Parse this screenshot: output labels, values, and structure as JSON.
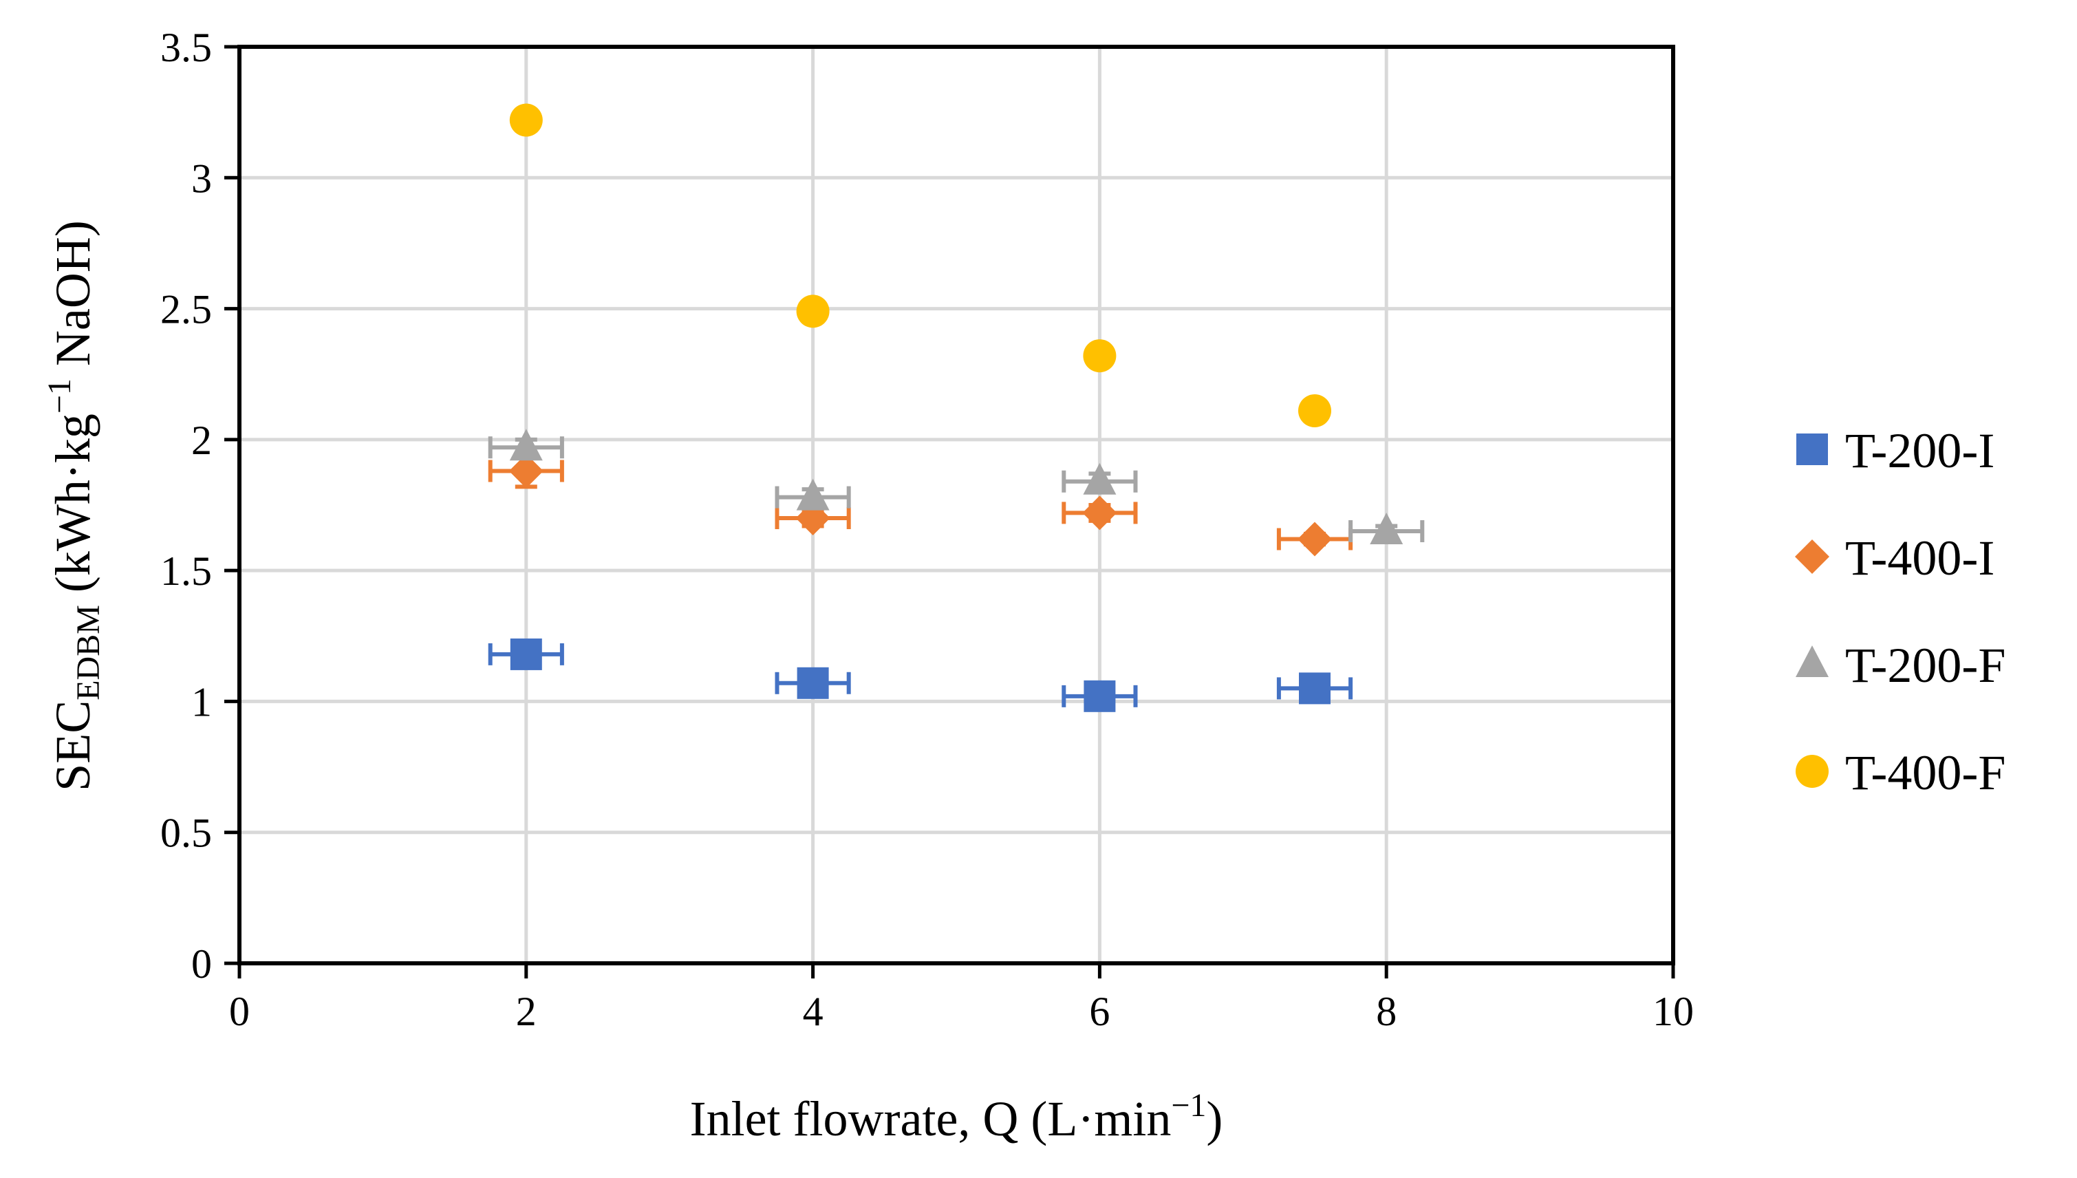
{
  "chart_data": {
    "type": "scatter",
    "xlabel": {
      "main": "Inlet flowrate, Q (L·min",
      "sup": "−1",
      "end": ")"
    },
    "ylabel": {
      "main": "SEC",
      "sub": "EDBM",
      "mid": " (kWh·kg",
      "sup": "−1",
      "end": " NaOH)"
    },
    "xlim": [
      0,
      10
    ],
    "ylim": [
      0,
      3.5
    ],
    "xticks": [
      0,
      2,
      4,
      6,
      8,
      10
    ],
    "yticks": [
      0,
      0.5,
      1,
      1.5,
      2,
      2.5,
      3,
      3.5
    ],
    "xtick_labels": [
      "0",
      "2",
      "4",
      "6",
      "8",
      "10"
    ],
    "ytick_labels": [
      "0",
      "0.5",
      "1",
      "1.5",
      "2",
      "2.5",
      "3",
      "3.5"
    ],
    "grid": true,
    "legend_position": "right",
    "series": [
      {
        "name": "T-200-I",
        "marker": "square",
        "color": "#4472C4",
        "x": [
          2,
          4,
          6,
          7.5
        ],
        "y": [
          1.18,
          1.07,
          1.02,
          1.05
        ],
        "x_err": [
          0.25,
          0.25,
          0.25,
          0.25
        ],
        "y_err": [
          0.02,
          0.02,
          0.02,
          0.02
        ]
      },
      {
        "name": "T-400-I",
        "marker": "diamond",
        "color": "#ED7D31",
        "x": [
          2,
          4,
          6,
          7.5
        ],
        "y": [
          1.88,
          1.7,
          1.72,
          1.62
        ],
        "x_err": [
          0.25,
          0.25,
          0.25,
          0.25
        ],
        "y_err": [
          0.06,
          0.03,
          0.03,
          0.02
        ]
      },
      {
        "name": "T-200-F",
        "marker": "triangle",
        "color": "#A5A5A5",
        "x": [
          2,
          4,
          6,
          8
        ],
        "y": [
          1.97,
          1.78,
          1.84,
          1.65
        ],
        "x_err": [
          0.25,
          0.25,
          0.25,
          0.25
        ],
        "y_err": [
          0.03,
          0.03,
          0.03,
          0.02
        ]
      },
      {
        "name": "T-400-F",
        "marker": "circle",
        "color": "#FFC000",
        "x": [
          2,
          4,
          6,
          7.5
        ],
        "y": [
          3.22,
          2.49,
          2.32,
          2.11
        ],
        "x_err": [
          0,
          0,
          0,
          0
        ],
        "y_err": [
          0.04,
          0,
          0,
          0
        ]
      }
    ]
  }
}
